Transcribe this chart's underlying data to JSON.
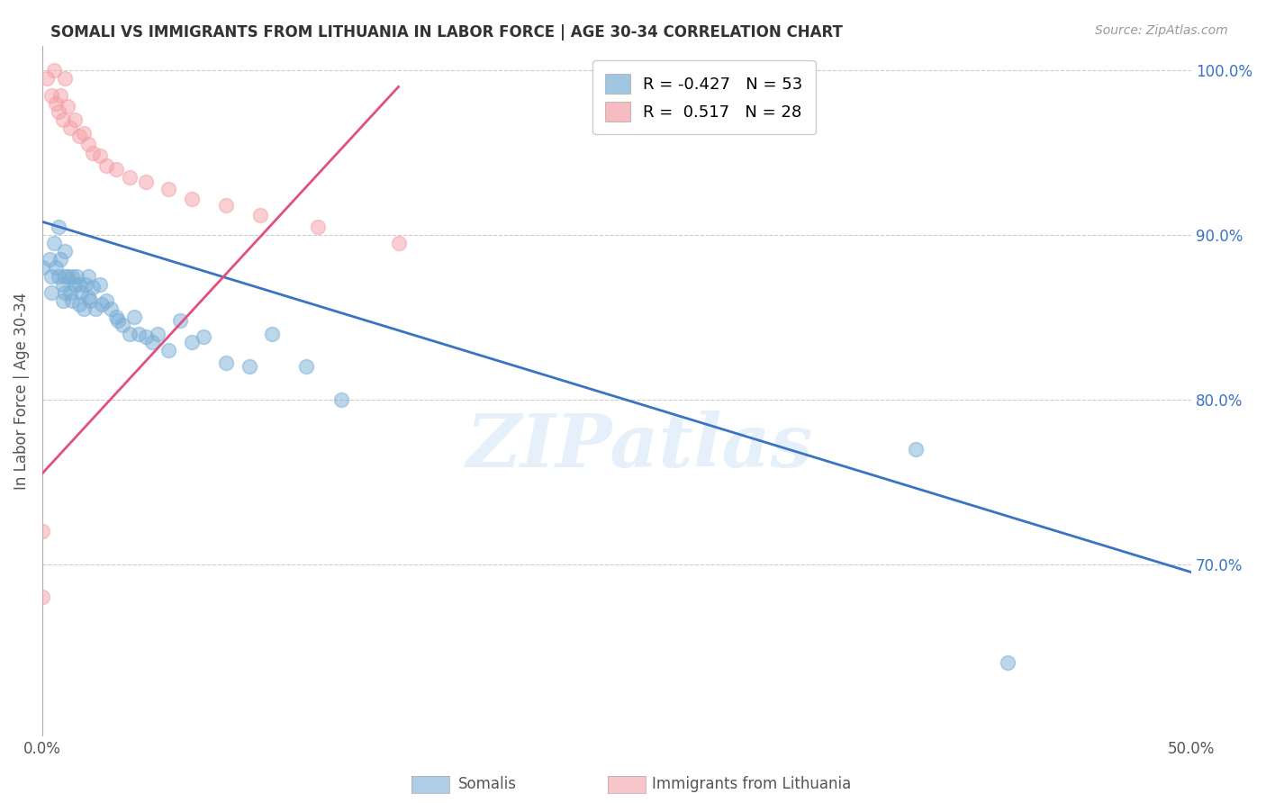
{
  "title": "SOMALI VS IMMIGRANTS FROM LITHUANIA IN LABOR FORCE | AGE 30-34 CORRELATION CHART",
  "source": "Source: ZipAtlas.com",
  "ylabel": "In Labor Force | Age 30-34",
  "xlim": [
    0.0,
    0.5
  ],
  "ylim": [
    0.595,
    1.015
  ],
  "xtick_pos": [
    0.0,
    0.1,
    0.2,
    0.3,
    0.4,
    0.5
  ],
  "xtick_labels": [
    "0.0%",
    "",
    "",
    "",
    "",
    "50.0%"
  ],
  "ytick_labels_right": [
    "100.0%",
    "90.0%",
    "80.0%",
    "70.0%"
  ],
  "ytick_vals_right": [
    1.0,
    0.9,
    0.8,
    0.7
  ],
  "grid_color": "#cccccc",
  "legend_R_blue": "-0.427",
  "legend_N_blue": "53",
  "legend_R_pink": "0.517",
  "legend_N_pink": "28",
  "blue_color": "#7aaed6",
  "pink_color": "#f4a0a8",
  "line_blue_color": "#3a72c4",
  "line_pink_color": "#e05080",
  "watermark": "ZIPatlas",
  "somali_x": [
    0.0,
    0.003,
    0.004,
    0.004,
    0.005,
    0.006,
    0.007,
    0.007,
    0.008,
    0.009,
    0.009,
    0.01,
    0.01,
    0.01,
    0.011,
    0.012,
    0.013,
    0.013,
    0.014,
    0.015,
    0.016,
    0.016,
    0.017,
    0.018,
    0.019,
    0.02,
    0.02,
    0.021,
    0.022,
    0.023,
    0.025,
    0.026,
    0.028,
    0.03,
    0.032,
    0.033,
    0.035,
    0.038,
    0.04,
    0.042,
    0.045,
    0.048,
    0.05,
    0.055,
    0.06,
    0.065,
    0.07,
    0.08,
    0.09,
    0.1,
    0.115,
    0.13,
    0.38,
    0.42
  ],
  "somali_y": [
    0.88,
    0.885,
    0.875,
    0.865,
    0.895,
    0.88,
    0.905,
    0.875,
    0.885,
    0.87,
    0.86,
    0.89,
    0.875,
    0.865,
    0.875,
    0.865,
    0.875,
    0.86,
    0.87,
    0.875,
    0.87,
    0.858,
    0.865,
    0.855,
    0.87,
    0.875,
    0.862,
    0.86,
    0.868,
    0.855,
    0.87,
    0.858,
    0.86,
    0.855,
    0.85,
    0.848,
    0.845,
    0.84,
    0.85,
    0.84,
    0.838,
    0.835,
    0.84,
    0.83,
    0.848,
    0.835,
    0.838,
    0.822,
    0.82,
    0.84,
    0.82,
    0.8,
    0.77,
    0.64
  ],
  "lithuania_x": [
    0.0,
    0.002,
    0.004,
    0.005,
    0.006,
    0.007,
    0.008,
    0.009,
    0.01,
    0.011,
    0.012,
    0.014,
    0.016,
    0.018,
    0.02,
    0.022,
    0.025,
    0.028,
    0.032,
    0.038,
    0.045,
    0.055,
    0.065,
    0.08,
    0.095,
    0.12,
    0.155,
    0.0
  ],
  "lithuania_y": [
    0.72,
    0.995,
    0.985,
    1.0,
    0.98,
    0.975,
    0.985,
    0.97,
    0.995,
    0.978,
    0.965,
    0.97,
    0.96,
    0.962,
    0.955,
    0.95,
    0.948,
    0.942,
    0.94,
    0.935,
    0.932,
    0.928,
    0.922,
    0.918,
    0.912,
    0.905,
    0.895,
    0.68
  ],
  "blue_line_x": [
    0.0,
    0.5
  ],
  "blue_line_y": [
    0.908,
    0.695
  ],
  "pink_line_x": [
    0.0,
    0.155
  ],
  "pink_line_y": [
    0.755,
    0.99
  ]
}
